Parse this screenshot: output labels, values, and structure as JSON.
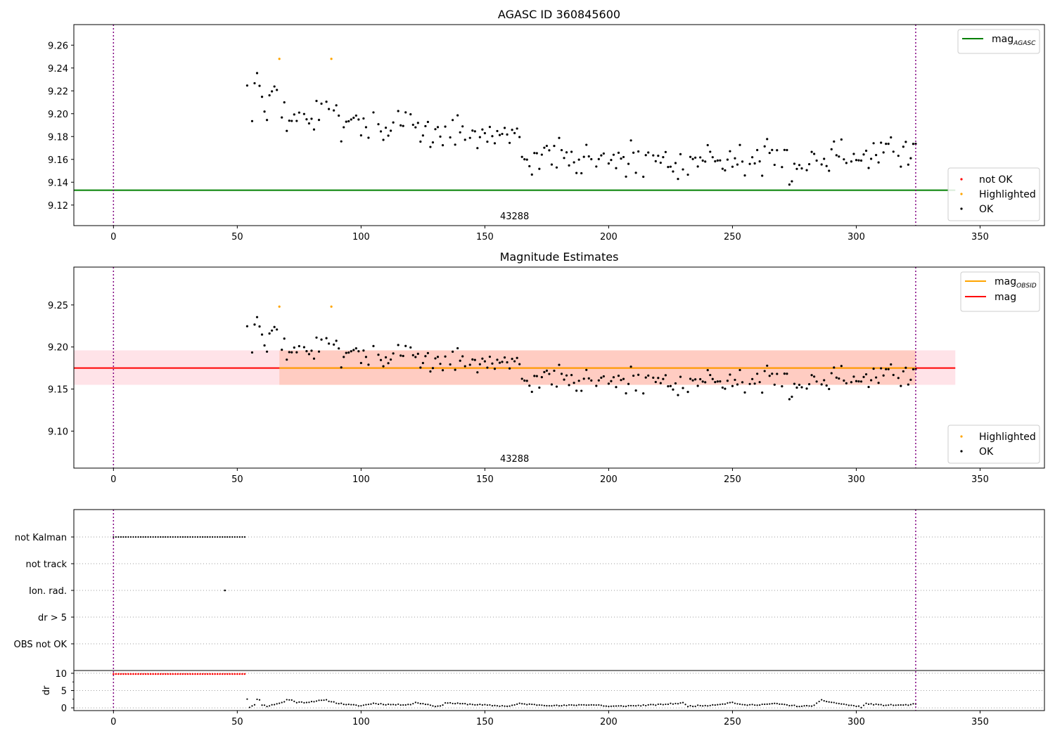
{
  "chart_data": [
    {
      "type": "scatter",
      "title": "AGASC ID 360845600",
      "xlim": [
        -16,
        376
      ],
      "ylim": [
        9.102,
        9.278
      ],
      "xticks": [
        0,
        50,
        100,
        150,
        200,
        250,
        300,
        350
      ],
      "yticks": [
        9.12,
        9.14,
        9.16,
        9.18,
        9.2,
        9.22,
        9.24,
        9.26
      ],
      "ytick_decimals": 2,
      "vlines": [
        0,
        324
      ],
      "obsid_label": "43288",
      "hlines": [
        {
          "name": "mag_AGASC",
          "y": 9.133,
          "color": "#008000",
          "x_end": 340
        }
      ],
      "legend_lines": [
        {
          "base": "mag",
          "sub": "AGASC",
          "color": "#008000"
        }
      ],
      "legend_markers": [
        {
          "label": "not OK",
          "color": "#ff0000"
        },
        {
          "label": "Highlighted",
          "color": "#ffa500"
        },
        {
          "label": "OK",
          "color": "#000000"
        }
      ],
      "highlighted": [
        [
          67,
          9.248
        ],
        [
          88,
          9.248
        ]
      ]
    },
    {
      "type": "scatter",
      "title": "Magnitude Estimates",
      "xlim": [
        -16,
        376
      ],
      "ylim": [
        9.056,
        9.295
      ],
      "xticks": [
        0,
        50,
        100,
        150,
        200,
        250,
        300,
        350
      ],
      "yticks": [
        9.1,
        9.15,
        9.2,
        9.25
      ],
      "ytick_decimals": 2,
      "vlines": [
        0,
        324
      ],
      "obsid_label": "43288",
      "bands": [
        {
          "x0": -16,
          "x1": 340,
          "y0": 9.155,
          "y1": 9.196,
          "color": "#ffc0cb",
          "opacity": 0.45
        },
        {
          "x0": 67,
          "x1": 324,
          "y0": 9.155,
          "y1": 9.196,
          "color": "#ffa07a",
          "opacity": 0.35
        }
      ],
      "hlines": [
        {
          "name": "mag",
          "y": 9.175,
          "color": "#ff0000",
          "x_end": 340
        },
        {
          "name": "mag_OBSID",
          "y": 9.175,
          "color": "#ffa500",
          "x_start": 67,
          "x_end": 324
        }
      ],
      "legend_lines": [
        {
          "base": "mag",
          "sub": "OBSID",
          "color": "#ffa500"
        },
        {
          "base": "mag",
          "sub": "",
          "color": "#ff0000"
        }
      ],
      "legend_markers": [
        {
          "label": "Highlighted",
          "color": "#ffa500"
        },
        {
          "label": "OK",
          "color": "#000000"
        }
      ],
      "highlighted": [
        [
          67,
          9.248
        ],
        [
          88,
          9.248
        ]
      ]
    },
    {
      "type": "scatter",
      "xlim": [
        -16,
        376
      ],
      "categories": [
        "not Kalman",
        "not track",
        "Ion. rad.",
        "dr > 5",
        "OBS not OK"
      ],
      "vlines": [
        0,
        324
      ],
      "not_kalman_x_range": [
        0,
        53
      ],
      "ion_rad_points": [
        45
      ],
      "dr_panel": {
        "ylabel": "dr",
        "yticks": [
          0,
          5,
          10
        ],
        "ylim": [
          -0.8,
          10.8
        ],
        "red_value": 9.8,
        "red_x_range": [
          0,
          53
        ],
        "segments": [
          [
            54,
            2.6
          ],
          [
            55,
            0.2
          ],
          [
            56,
            0.6
          ],
          [
            57,
            1.0
          ],
          [
            58,
            2.4
          ],
          [
            59,
            2.2
          ],
          [
            60,
            0.9
          ],
          [
            62,
            0.5
          ],
          [
            64,
            0.8
          ],
          [
            66,
            1.2
          ],
          [
            69,
            1.7
          ],
          [
            70,
            2.4
          ],
          [
            72,
            2.2
          ],
          [
            74,
            1.6
          ],
          [
            78,
            1.6
          ],
          [
            82,
            2.0
          ],
          [
            86,
            2.2
          ],
          [
            88,
            1.8
          ],
          [
            91,
            1.3
          ],
          [
            95,
            0.9
          ],
          [
            100,
            0.6
          ],
          [
            105,
            1.3
          ],
          [
            110,
            1.0
          ],
          [
            115,
            0.9
          ],
          [
            120,
            1.0
          ],
          [
            122,
            1.5
          ],
          [
            126,
            1.1
          ],
          [
            130,
            0.5
          ],
          [
            132,
            0.4
          ],
          [
            134,
            1.5
          ],
          [
            137,
            1.3
          ],
          [
            145,
            1.0
          ],
          [
            155,
            0.6
          ],
          [
            160,
            0.5
          ],
          [
            164,
            1.2
          ],
          [
            170,
            0.9
          ],
          [
            180,
            0.6
          ],
          [
            190,
            0.9
          ],
          [
            196,
            0.8
          ],
          [
            200,
            0.4
          ],
          [
            210,
            0.6
          ],
          [
            220,
            0.9
          ],
          [
            226,
            1.2
          ],
          [
            230,
            1.4
          ],
          [
            232,
            0.5
          ],
          [
            240,
            0.7
          ],
          [
            247,
            1.2
          ],
          [
            250,
            1.6
          ],
          [
            254,
            0.8
          ],
          [
            260,
            0.9
          ],
          [
            268,
            1.2
          ],
          [
            272,
            0.8
          ],
          [
            278,
            0.4
          ],
          [
            283,
            0.7
          ],
          [
            286,
            2.2
          ],
          [
            290,
            1.6
          ],
          [
            295,
            1.0
          ],
          [
            300,
            0.5
          ],
          [
            302,
            0.2
          ],
          [
            304,
            1.2
          ],
          [
            310,
            0.8
          ],
          [
            320,
            0.8
          ],
          [
            324,
            1.1
          ]
        ]
      }
    }
  ]
}
